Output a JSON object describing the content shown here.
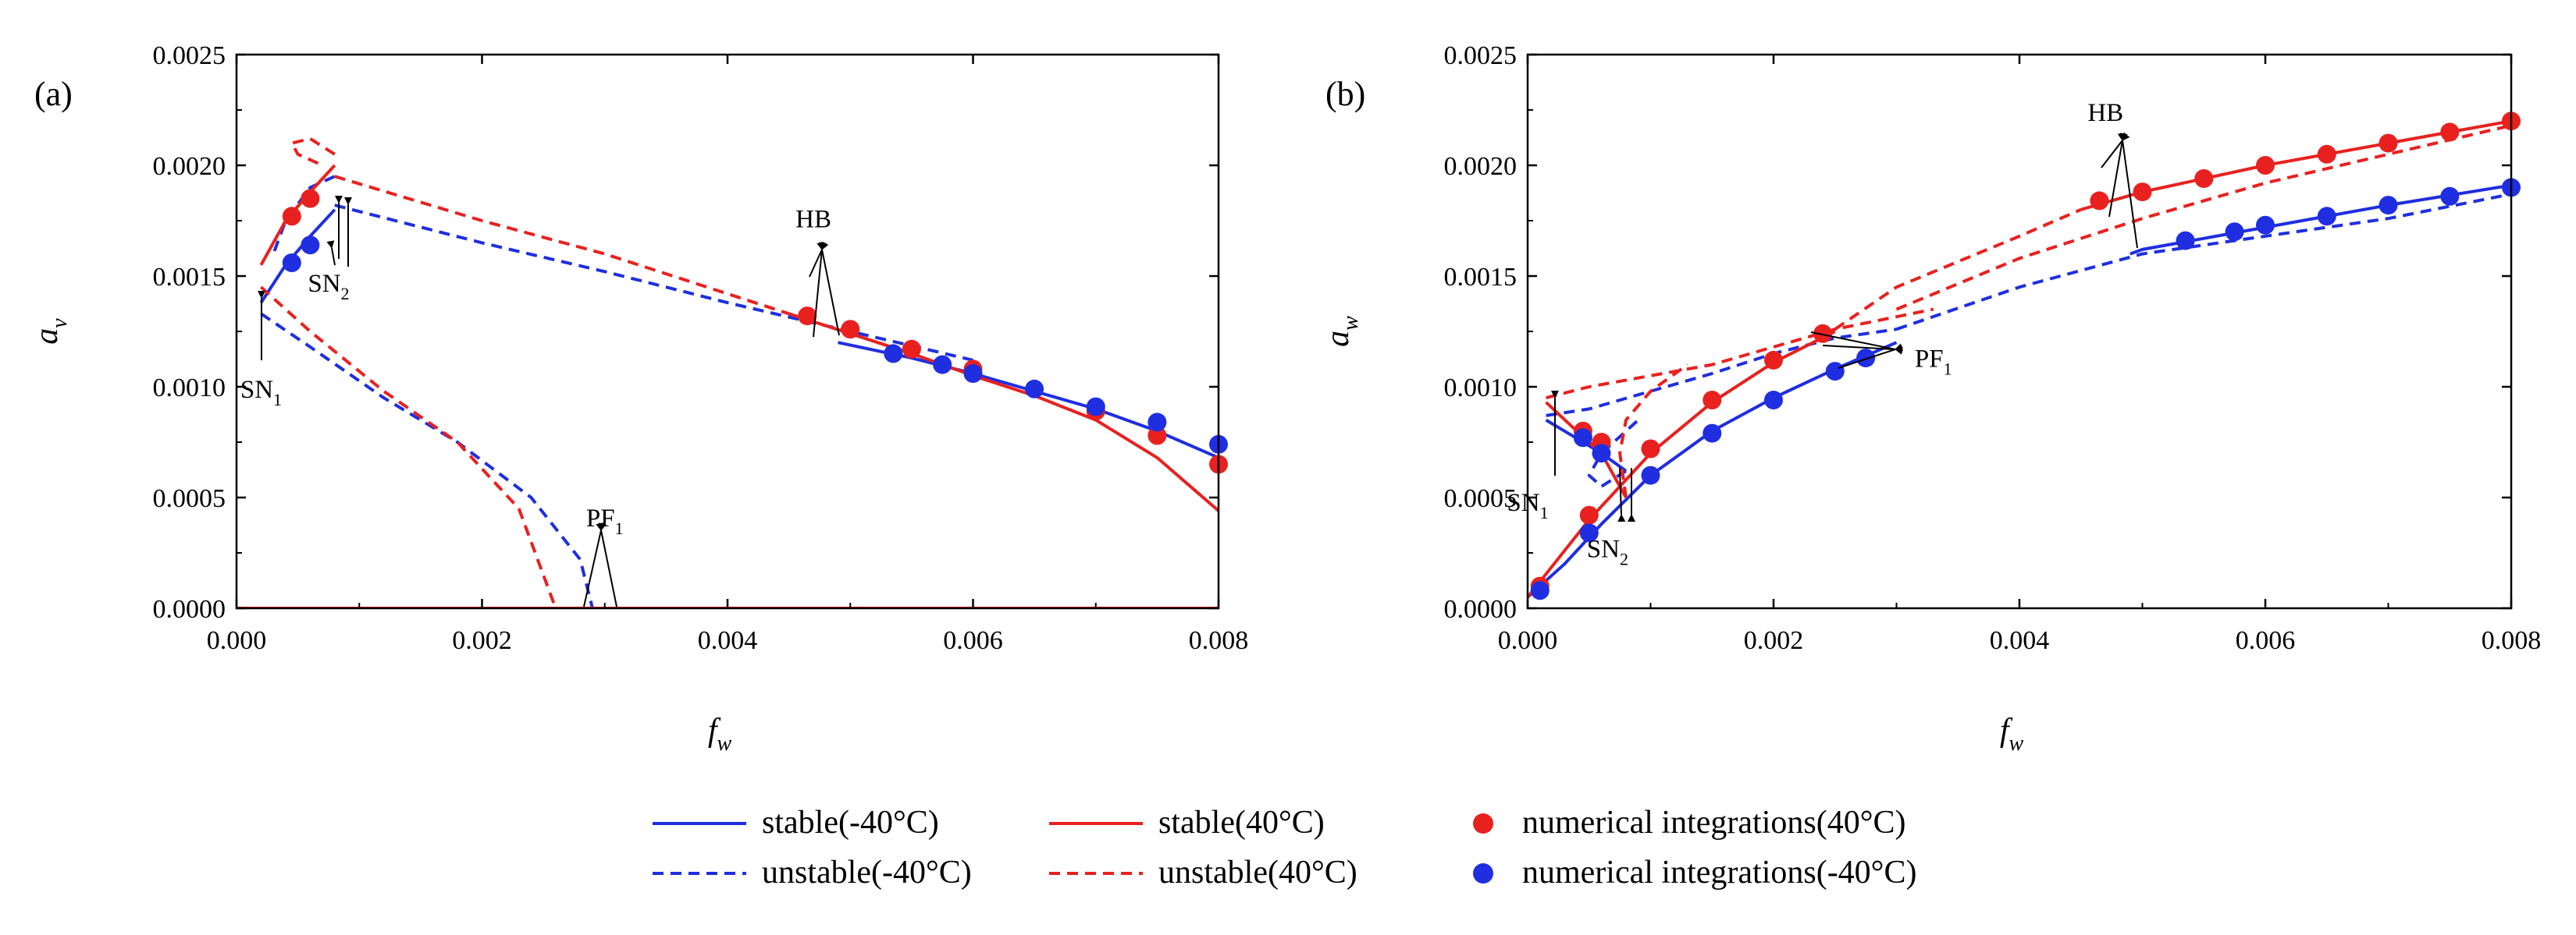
{
  "chart_data": [
    {
      "panel": "(a)",
      "type": "line",
      "xlabel": "f",
      "xlabel_sub": "w",
      "ylabel": "a",
      "ylabel_sub": "v",
      "xlim": [
        0,
        0.008
      ],
      "ylim": [
        0,
        0.0025
      ],
      "xticks": [
        0,
        0.002,
        0.004,
        0.006,
        0.008
      ],
      "xtick_labels": [
        "0.000",
        "0.002",
        "0.004",
        "0.006",
        "0.008"
      ],
      "yticks": [
        0,
        0.0005,
        0.001,
        0.0015,
        0.002,
        0.0025
      ],
      "ytick_labels": [
        "0.0000",
        "0.0005",
        "0.0010",
        "0.0015",
        "0.0020",
        "0.0025"
      ],
      "series": [
        {
          "name": "unstable(-40°C)",
          "color": "#1f2ee0",
          "dashed": true,
          "x": [
            0.0008,
            0.0006,
            0.0004,
            0.0003
          ],
          "y": [
            0.00195,
            0.0019,
            0.00175,
            0.0016
          ]
        },
        {
          "name": "unstable(-40°C)",
          "color": "#1f2ee0",
          "dashed": true,
          "x": [
            0.0008,
            0.002,
            0.003,
            0.004,
            0.005,
            0.006
          ],
          "y": [
            0.00182,
            0.00165,
            0.00152,
            0.00138,
            0.00125,
            0.00112
          ]
        },
        {
          "name": "unstable(-40°C)",
          "color": "#1f2ee0",
          "dashed": true,
          "x": [
            0.0002,
            0.0006,
            0.0012,
            0.0018,
            0.0024,
            0.0028,
            0.0029
          ],
          "y": [
            0.00133,
            0.00118,
            0.00095,
            0.00075,
            0.0005,
            0.00022,
            0.0
          ]
        },
        {
          "name": "stable(-40°C)",
          "color": "#1f2ee0",
          "dashed": false,
          "x": [
            0.0002,
            0.0004,
            0.0006,
            0.0008
          ],
          "y": [
            0.00138,
            0.00155,
            0.00168,
            0.0018
          ]
        },
        {
          "name": "stable(-40°C)",
          "color": "#1f2ee0",
          "dashed": false,
          "x": [
            0.0049,
            0.0055,
            0.006,
            0.0065,
            0.007,
            0.0075,
            0.008
          ],
          "y": [
            0.0012,
            0.00113,
            0.00106,
            0.00098,
            0.0009,
            0.0008,
            0.00068
          ]
        },
        {
          "name": "stable(-40°C)",
          "color": "#1f2ee0",
          "dashed": false,
          "x": [
            0.0,
            0.0029
          ],
          "y": [
            0.0,
            0.0
          ]
        },
        {
          "name": "unstable(-40°C)",
          "color": "#1f2ee0",
          "dashed": true,
          "x": [
            0.0029,
            0.008
          ],
          "y": [
            0.0,
            0.0
          ]
        },
        {
          "name": "unstable(40°C)",
          "color": "#e8211f",
          "dashed": true,
          "x": [
            0.0008,
            0.0006,
            0.00045,
            0.0005,
            0.0007
          ],
          "y": [
            0.00205,
            0.00212,
            0.0021,
            0.00205,
            0.002
          ]
        },
        {
          "name": "unstable(40°C)",
          "color": "#e8211f",
          "dashed": true,
          "x": [
            0.0008,
            0.002,
            0.003,
            0.004,
            0.0045
          ],
          "y": [
            0.00195,
            0.00175,
            0.0016,
            0.00142,
            0.00133
          ]
        },
        {
          "name": "unstable(40°C)",
          "color": "#e8211f",
          "dashed": true,
          "x": [
            0.0002,
            0.0006,
            0.0012,
            0.0018,
            0.0023,
            0.0026
          ],
          "y": [
            0.00145,
            0.00125,
            0.00098,
            0.00075,
            0.00045,
            0.0
          ]
        },
        {
          "name": "stable(40°C)",
          "color": "#e8211f",
          "dashed": false,
          "x": [
            0.0002,
            0.0004,
            0.0006,
            0.0008
          ],
          "y": [
            0.00155,
            0.00175,
            0.00188,
            0.002
          ]
        },
        {
          "name": "stable(40°C)",
          "color": "#e8211f",
          "dashed": false,
          "x": [
            0.0045,
            0.005,
            0.0055,
            0.006,
            0.0065,
            0.007,
            0.0075,
            0.008
          ],
          "y": [
            0.00133,
            0.00124,
            0.00115,
            0.00105,
            0.00096,
            0.00085,
            0.00068,
            0.00044
          ]
        },
        {
          "name": "stable(40°C)",
          "color": "#e8211f",
          "dashed": false,
          "x": [
            0.0,
            0.008
          ],
          "y": [
            0.0,
            0.0
          ]
        }
      ],
      "points": [
        {
          "name": "numerical integrations(40°C)",
          "color": "#e8211f",
          "x": [
            0.00045,
            0.0006,
            0.00465,
            0.005,
            0.0055,
            0.006,
            0.007,
            0.0075,
            0.008
          ],
          "y": [
            0.00177,
            0.00185,
            0.00132,
            0.00126,
            0.00117,
            0.00108,
            0.00089,
            0.00078,
            0.00065
          ]
        },
        {
          "name": "numerical integrations(-40°C)",
          "color": "#1f2ee0",
          "x": [
            0.00045,
            0.0006,
            0.00535,
            0.00575,
            0.006,
            0.0065,
            0.007,
            0.0075,
            0.008
          ],
          "y": [
            0.00156,
            0.00164,
            0.00115,
            0.0011,
            0.00106,
            0.00099,
            0.00091,
            0.00084,
            0.00074
          ]
        }
      ],
      "annotations": [
        {
          "text": "SN",
          "sub": "1",
          "x": 0.0002,
          "y": 0.00095
        },
        {
          "text": "SN",
          "sub": "2",
          "x": 0.00075,
          "y": 0.00143
        },
        {
          "text": "HB",
          "x": 0.0047,
          "y": 0.00172
        },
        {
          "text": "PF",
          "sub": "1",
          "x": 0.003,
          "y": 0.00037
        }
      ]
    },
    {
      "panel": "(b)",
      "type": "line",
      "xlabel": "f",
      "xlabel_sub": "w",
      "ylabel": "a",
      "ylabel_sub": "w",
      "xlim": [
        0,
        0.008
      ],
      "ylim": [
        0,
        0.0025
      ],
      "xticks": [
        0,
        0.002,
        0.004,
        0.006,
        0.008
      ],
      "xtick_labels": [
        "0.000",
        "0.002",
        "0.004",
        "0.006",
        "0.008"
      ],
      "yticks": [
        0,
        0.0005,
        0.001,
        0.0015,
        0.002,
        0.0025
      ],
      "ytick_labels": [
        "0.0000",
        "0.0005",
        "0.0010",
        "0.0015",
        "0.0020",
        "0.0025"
      ],
      "series": [
        {
          "name": "stable(-40°C)",
          "color": "#1f2ee0",
          "dashed": false,
          "x": [
            0.0,
            0.0003,
            0.0006,
            0.001,
            0.0015,
            0.002,
            0.0025,
            0.003
          ],
          "y": [
            5e-05,
            0.0002,
            0.00038,
            0.0006,
            0.0008,
            0.00095,
            0.00108,
            0.0012
          ]
        },
        {
          "name": "stable(-40°C)",
          "color": "#1f2ee0",
          "dashed": false,
          "x": [
            0.00015,
            0.0003,
            0.0006,
            0.0008
          ],
          "y": [
            0.00085,
            0.0008,
            0.0007,
            0.00062
          ]
        },
        {
          "name": "unstable(-40°C)",
          "color": "#1f2ee0",
          "dashed": true,
          "x": [
            0.00015,
            0.0005,
            0.001,
            0.0015,
            0.002,
            0.0025,
            0.003
          ],
          "y": [
            0.00087,
            0.0009,
            0.00098,
            0.00106,
            0.00115,
            0.00122,
            0.00126
          ]
        },
        {
          "name": "unstable(-40°C)",
          "color": "#1f2ee0",
          "dashed": true,
          "x": [
            0.0008,
            0.0006,
            0.0005,
            0.0006,
            0.0009
          ],
          "y": [
            0.00062,
            0.00055,
            0.0006,
            0.0007,
            0.00085
          ]
        },
        {
          "name": "unstable(-40°C)",
          "color": "#1f2ee0",
          "dashed": true,
          "x": [
            0.003,
            0.004,
            0.005,
            0.006,
            0.007,
            0.008
          ],
          "y": [
            0.00126,
            0.00145,
            0.0016,
            0.00168,
            0.00176,
            0.00187
          ]
        },
        {
          "name": "stable(-40°C)",
          "color": "#1f2ee0",
          "dashed": false,
          "x": [
            0.0049,
            0.005,
            0.006,
            0.007,
            0.008
          ],
          "y": [
            0.0016,
            0.00162,
            0.00172,
            0.00182,
            0.00191
          ]
        },
        {
          "name": "stable(40°C)",
          "color": "#e8211f",
          "dashed": false,
          "x": [
            0.0,
            0.0005,
            0.001,
            0.0015,
            0.002,
            0.0025
          ],
          "y": [
            5e-05,
            0.0004,
            0.0007,
            0.00093,
            0.00111,
            0.00125
          ]
        },
        {
          "name": "stable(40°C)",
          "color": "#e8211f",
          "dashed": false,
          "x": [
            0.00015,
            0.0004,
            0.0006,
            0.0008
          ],
          "y": [
            0.00093,
            0.0008,
            0.0007,
            0.0005
          ]
        },
        {
          "name": "unstable(40°C)",
          "color": "#e8211f",
          "dashed": true,
          "x": [
            0.00015,
            0.0005,
            0.001,
            0.0015,
            0.002,
            0.0025,
            0.0033
          ],
          "y": [
            0.00095,
            0.001,
            0.00105,
            0.0011,
            0.00118,
            0.00126,
            0.00135
          ]
        },
        {
          "name": "unstable(40°C)",
          "color": "#e8211f",
          "dashed": true,
          "x": [
            0.0008,
            0.00075,
            0.0008,
            0.001,
            0.0013
          ],
          "y": [
            0.0005,
            0.0007,
            0.00085,
            0.00098,
            0.0011
          ]
        },
        {
          "name": "unstable(40°C)",
          "color": "#e8211f",
          "dashed": true,
          "x": [
            0.0025,
            0.003,
            0.004,
            0.0045
          ],
          "y": [
            0.00126,
            0.00145,
            0.00168,
            0.0018
          ]
        },
        {
          "name": "unstable(40°C)",
          "color": "#e8211f",
          "dashed": true,
          "x": [
            0.003,
            0.004,
            0.005,
            0.006,
            0.007,
            0.008
          ],
          "y": [
            0.00135,
            0.00158,
            0.00176,
            0.00192,
            0.00205,
            0.00218
          ]
        },
        {
          "name": "stable(40°C)",
          "color": "#e8211f",
          "dashed": false,
          "x": [
            0.0045,
            0.005,
            0.006,
            0.007,
            0.008
          ],
          "y": [
            0.0018,
            0.00188,
            0.002,
            0.0021,
            0.0022
          ]
        }
      ],
      "points": [
        {
          "name": "numerical integrations(40°C)",
          "color": "#e8211f",
          "x": [
            0.0001,
            0.00045,
            0.0005,
            0.0006,
            0.001,
            0.0015,
            0.002,
            0.0024,
            0.00465,
            0.005,
            0.0055,
            0.006,
            0.0065,
            0.007,
            0.0075,
            0.008
          ],
          "y": [
            0.0001,
            0.0008,
            0.00042,
            0.00075,
            0.00072,
            0.00094,
            0.00112,
            0.00124,
            0.00184,
            0.00188,
            0.00194,
            0.002,
            0.00205,
            0.0021,
            0.00215,
            0.0022
          ]
        },
        {
          "name": "numerical integrations(-40°C)",
          "color": "#1f2ee0",
          "x": [
            0.0001,
            0.00045,
            0.0005,
            0.0006,
            0.001,
            0.0015,
            0.002,
            0.0025,
            0.00275,
            0.00535,
            0.00575,
            0.006,
            0.0065,
            0.007,
            0.0075,
            0.008
          ],
          "y": [
            8e-05,
            0.00077,
            0.00034,
            0.0007,
            0.0006,
            0.00079,
            0.00094,
            0.00107,
            0.00113,
            0.00166,
            0.0017,
            0.00173,
            0.00177,
            0.00182,
            0.00186,
            0.0019
          ]
        }
      ],
      "annotations": [
        {
          "text": "SN",
          "sub": "1",
          "x": 0.0,
          "y": 0.00044
        },
        {
          "text": "SN",
          "sub": "2",
          "x": 0.00065,
          "y": 0.00023
        },
        {
          "text": "HB",
          "x": 0.0047,
          "y": 0.0022
        },
        {
          "text": "PF",
          "sub": "1",
          "x": 0.0033,
          "y": 0.00109
        }
      ]
    }
  ],
  "legend": [
    {
      "label": "stable(-40°C)",
      "color": "#1f2ee0",
      "kind": "solid"
    },
    {
      "label": "unstable(-40°C)",
      "color": "#1f2ee0",
      "kind": "dashed"
    },
    {
      "label": "stable(40°C)",
      "color": "#e8211f",
      "kind": "solid"
    },
    {
      "label": "unstable(40°C)",
      "color": "#e8211f",
      "kind": "dashed"
    },
    {
      "label": "numerical integrations(40°C)",
      "color": "#e8211f",
      "kind": "dot"
    },
    {
      "label": " numerical integrations(-40°C)",
      "color": "#1f2ee0",
      "kind": "dot"
    }
  ]
}
